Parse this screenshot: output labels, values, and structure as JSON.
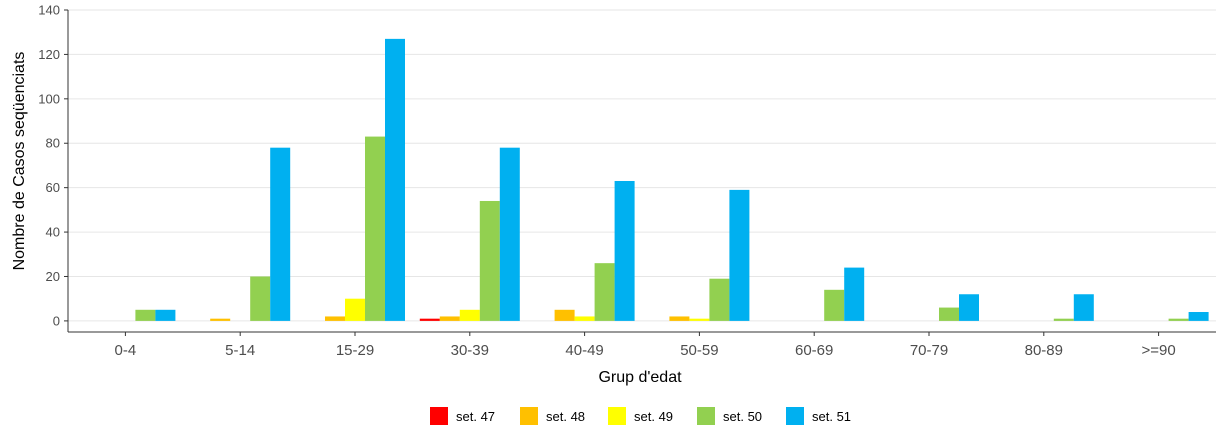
{
  "chart_data": {
    "type": "bar",
    "title": "",
    "xlabel": "Grup d'edat",
    "ylabel": "Nombre de Casos seqüenciats",
    "ylim": [
      -5,
      140
    ],
    "yticks": [
      0,
      20,
      40,
      60,
      80,
      100,
      120,
      140
    ],
    "grid": "horizontal",
    "legend_position": "bottom",
    "categories": [
      "0-4",
      "5-14",
      "15-29",
      "30-39",
      "40-49",
      "50-59",
      "60-69",
      "70-79",
      "80-89",
      ">=90"
    ],
    "series": [
      {
        "name": "set. 47",
        "color": "#ff0000",
        "values": [
          0,
          0,
          0,
          1,
          0,
          0,
          0,
          0,
          0,
          0
        ]
      },
      {
        "name": "set. 48",
        "color": "#ffc000",
        "values": [
          0,
          1,
          2,
          2,
          5,
          2,
          0,
          0,
          0,
          0
        ]
      },
      {
        "name": "set. 49",
        "color": "#ffff00",
        "values": [
          0,
          0,
          10,
          5,
          2,
          1,
          0,
          0,
          0,
          0
        ]
      },
      {
        "name": "set. 50",
        "color": "#92d050",
        "values": [
          5,
          20,
          83,
          54,
          26,
          19,
          14,
          6,
          1,
          1
        ]
      },
      {
        "name": "set. 51",
        "color": "#00b0f0",
        "values": [
          5,
          78,
          127,
          78,
          63,
          59,
          24,
          12,
          12,
          4
        ]
      }
    ]
  }
}
